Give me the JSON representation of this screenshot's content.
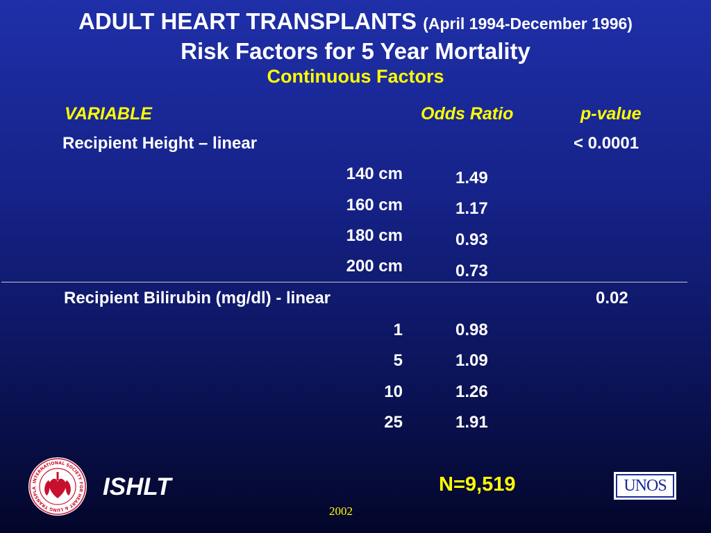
{
  "title": {
    "main": "ADULT HEART TRANSPLANTS",
    "date_range": "(April 1994-December 1996)",
    "subtitle": "Risk Factors for 5 Year Mortality",
    "subtitle2": "Continuous Factors"
  },
  "table": {
    "headers": {
      "variable": "VARIABLE",
      "odds_ratio": "Odds Ratio",
      "p_value": "p-value"
    },
    "groups": [
      {
        "label": "Recipient Height – linear",
        "p_value": "< 0.0001",
        "rows": [
          {
            "level": "140 cm",
            "odds_ratio": "1.49"
          },
          {
            "level": "160 cm",
            "odds_ratio": "1.17"
          },
          {
            "level": "180 cm",
            "odds_ratio": "0.93"
          },
          {
            "level": "200 cm",
            "odds_ratio": "0.73"
          }
        ]
      },
      {
        "label": "Recipient Bilirubin (mg/dl) - linear",
        "p_value": "0.02",
        "rows": [
          {
            "level": "1",
            "odds_ratio": "0.98"
          },
          {
            "level": "5",
            "odds_ratio": "1.09"
          },
          {
            "level": "10",
            "odds_ratio": "1.26"
          },
          {
            "level": "25",
            "odds_ratio": "1.91"
          }
        ]
      }
    ]
  },
  "footer": {
    "org": "ISHLT",
    "n": "N=9,519",
    "year": "2002",
    "unos_logo_text": "UNOS",
    "ishlt_logo_text": "INTERNATIONAL SOCIETY FOR HEART & LUNG TRANSPLANTATION"
  },
  "colors": {
    "background_top": "#1f2fa8",
    "background_bottom": "#03062a",
    "accent": "#ffff00",
    "text": "#ffffff"
  }
}
